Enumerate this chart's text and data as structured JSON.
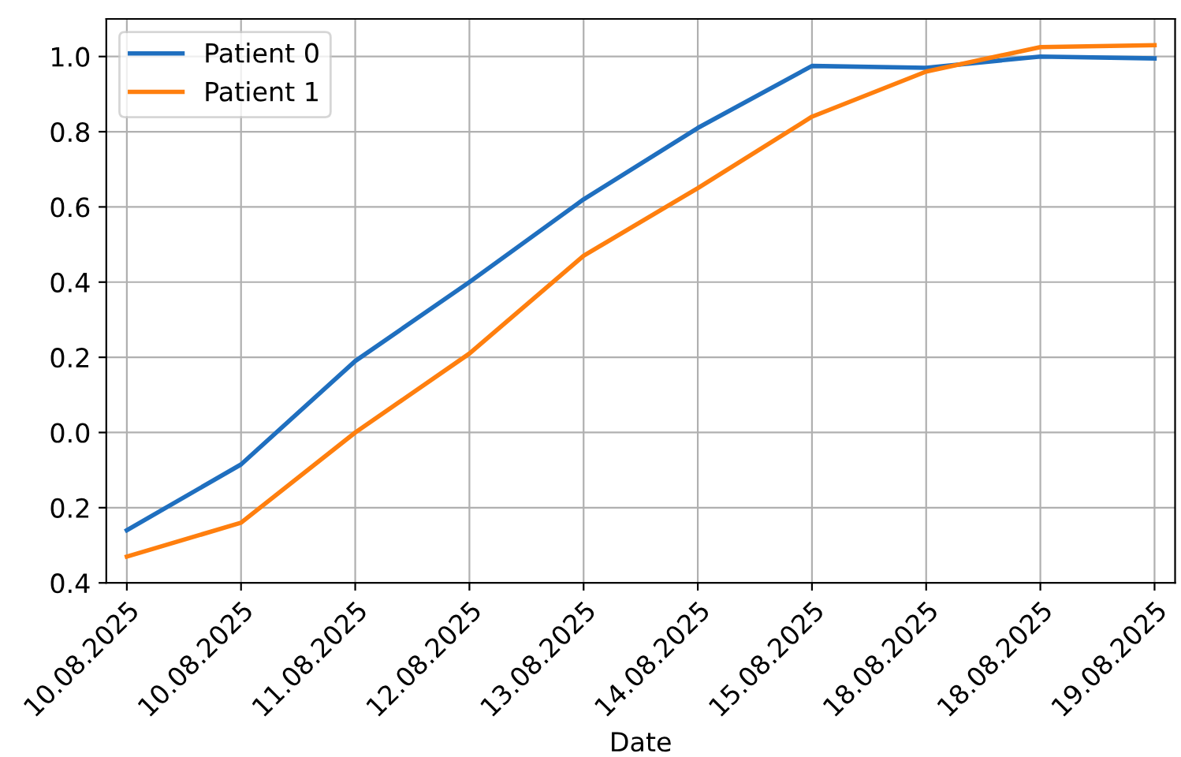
{
  "chart_data": {
    "type": "line",
    "xlabel": "Date",
    "categories": [
      "10.08.2025",
      "10.08.2025",
      "11.08.2025",
      "12.08.2025",
      "13.08.2025",
      "14.08.2025",
      "15.08.2025",
      "18.08.2025",
      "18.08.2025",
      "19.08.2025"
    ],
    "series": [
      {
        "name": "Patient 0",
        "color": "#1f6fbf",
        "values": [
          -0.26,
          -0.085,
          0.19,
          0.4,
          0.62,
          0.81,
          0.975,
          0.97,
          1.0,
          0.995
        ]
      },
      {
        "name": "Patient 1",
        "color": "#ff7f0e",
        "values": [
          -0.33,
          -0.24,
          0.0,
          0.21,
          0.47,
          0.65,
          0.84,
          0.96,
          1.025,
          1.03
        ]
      }
    ],
    "ylim": [
      -0.4,
      1.1
    ],
    "yticks": [
      {
        "value": -0.4,
        "label": "0.4"
      },
      {
        "value": -0.2,
        "label": "0.2"
      },
      {
        "value": 0,
        "label": "0.0"
      },
      0.2,
      0.4,
      0.6,
      0.8,
      {
        "value": 1,
        "label": "1.0"
      }
    ],
    "grid": true,
    "legend": "top left",
    "line_style": "solid",
    "marker": "none"
  }
}
